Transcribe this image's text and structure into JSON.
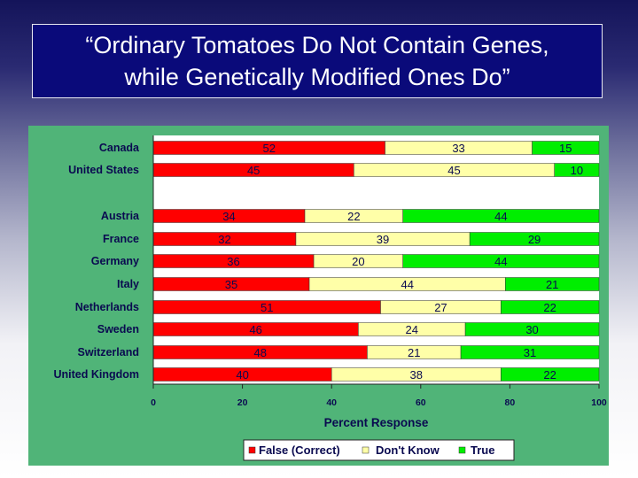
{
  "title": {
    "line1": "“Ordinary Tomatoes Do Not Contain Genes,",
    "line2": "while Genetically Modified Ones Do”"
  },
  "colors": {
    "false": "#ff0000",
    "dont_know": "#ffffa8",
    "true": "#00ee00",
    "panel": "#50b478",
    "label_text": "#0a0a50"
  },
  "chart_data": {
    "type": "bar",
    "orientation": "horizontal",
    "stacked": true,
    "categories": [
      "Canada",
      "United States",
      "Austria",
      "France",
      "Germany",
      "Italy",
      "Netherlands",
      "Sweden",
      "Switzerland",
      "United Kingdom"
    ],
    "series": [
      {
        "name": "False (Correct)",
        "values": [
          52,
          45,
          34,
          32,
          36,
          35,
          51,
          46,
          48,
          40
        ]
      },
      {
        "name": "Don't Know",
        "values": [
          33,
          45,
          22,
          39,
          20,
          44,
          27,
          24,
          21,
          38
        ]
      },
      {
        "name": "True",
        "values": [
          15,
          10,
          44,
          29,
          44,
          21,
          22,
          30,
          31,
          22
        ]
      }
    ],
    "xlabel": "Percent Response",
    "xlim": [
      0,
      100
    ],
    "xticks": [
      0,
      20,
      40,
      60,
      80,
      100
    ],
    "legend_position": "bottom"
  }
}
